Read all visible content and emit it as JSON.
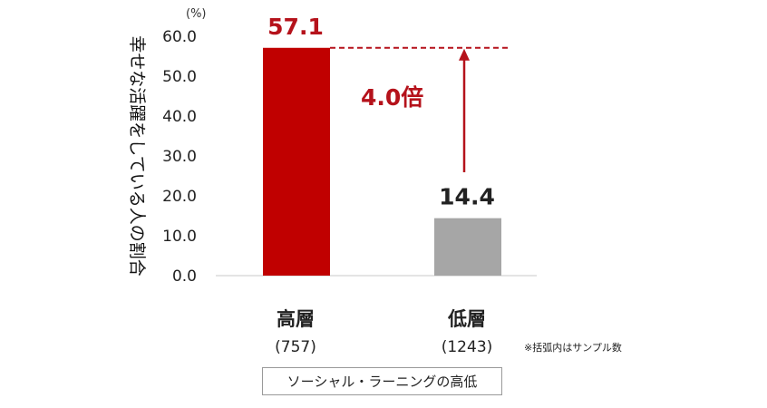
{
  "chart_data": {
    "type": "bar",
    "unit_label": "(%)",
    "ylabel": "幸せな活躍をしている人の割合",
    "ylim": [
      0,
      60
    ],
    "yticks": [
      "60.0",
      "50.0",
      "40.0",
      "30.0",
      "20.0",
      "10.0",
      "0.0"
    ],
    "categories": [
      "高層",
      "低層"
    ],
    "counts": [
      "(757)",
      "(1243)"
    ],
    "values": [
      57.1,
      14.4
    ],
    "value_labels": [
      "57.1",
      "14.4"
    ],
    "bar_colors": [
      "#c00000",
      "#a6a6a6"
    ],
    "annotation": "4.0倍",
    "annotation_color": "#b5121b",
    "note": "※括弧内はサンプル数",
    "legend": "ソーシャル・ラーニングの高低",
    "grid": false
  }
}
